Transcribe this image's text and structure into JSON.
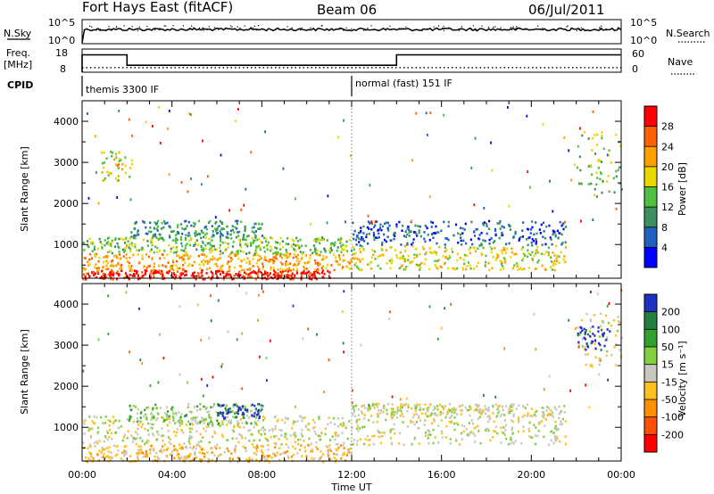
{
  "header": {
    "station": "Fort Hays East (fitACF)",
    "beam": "Beam 06",
    "date": "06/Jul/2011"
  },
  "strips": {
    "nsky_label": "N.Sky",
    "nsky_ticks": [
      "10^5",
      "10^0"
    ],
    "nsearch_label": "N.Search",
    "nsearch_ticks": [
      "10^5",
      "10^0"
    ],
    "freq_label": "Freq.",
    "freq_unit": "[MHz]",
    "freq_ticks": [
      "18",
      "8"
    ],
    "nave_label": "Nave",
    "nave_ticks": [
      "60",
      "0"
    ],
    "cpid_label": "CPID",
    "cpid_segments": [
      {
        "start_ut": 0,
        "text": "themis 3300 IF"
      },
      {
        "start_ut": 12,
        "text": "normal (fast) 151 IF"
      }
    ]
  },
  "chart_data": [
    {
      "type": "heatmap",
      "title": "",
      "panel": "power",
      "xlabel": "",
      "ylabel": "Slant Range [km]",
      "xlim_ut_hours": [
        0,
        24
      ],
      "ylim_km": [
        180,
        4500
      ],
      "x_ticks": [
        "00:00",
        "04:00",
        "08:00",
        "12:00",
        "16:00",
        "20:00",
        "00:00"
      ],
      "y_ticks": [
        1000,
        2000,
        3000,
        4000
      ],
      "colorbar": {
        "label": "Power [dB]",
        "ticks": [
          "4",
          "8",
          "12",
          "16",
          "20",
          "24",
          "28"
        ],
        "colors": [
          "#0000ff",
          "#2060c0",
          "#3c9060",
          "#50c040",
          "#e8d800",
          "#ffa000",
          "#ff6000",
          "#ff0000"
        ]
      },
      "regions": [
        {
          "t": [
            0.0,
            11.0
          ],
          "r": [
            180,
            400
          ],
          "level": 7
        },
        {
          "t": [
            0.0,
            12.0
          ],
          "r": [
            400,
            800
          ],
          "level": 5
        },
        {
          "t": [
            0.0,
            12.0
          ],
          "r": [
            800,
            1200
          ],
          "level": 3
        },
        {
          "t": [
            2.0,
            8.0
          ],
          "r": [
            1200,
            1600
          ],
          "level": 2
        },
        {
          "t": [
            12.0,
            21.5
          ],
          "r": [
            400,
            1000
          ],
          "level": 4
        },
        {
          "t": [
            12.0,
            21.5
          ],
          "r": [
            1000,
            1600
          ],
          "level": 1
        },
        {
          "t": [
            0.8,
            2.2
          ],
          "r": [
            2500,
            3300
          ],
          "level": 4
        },
        {
          "t": [
            22.0,
            24.0
          ],
          "r": [
            2200,
            3800
          ],
          "level": 3
        }
      ]
    },
    {
      "type": "heatmap",
      "title": "",
      "panel": "velocity",
      "xlabel": "Time UT",
      "ylabel": "Slant Range [km]",
      "xlim_ut_hours": [
        0,
        24
      ],
      "ylim_km": [
        180,
        4500
      ],
      "x_ticks": [
        "00:00",
        "04:00",
        "08:00",
        "12:00",
        "16:00",
        "20:00",
        "00:00"
      ],
      "y_ticks": [
        1000,
        2000,
        3000,
        4000
      ],
      "colorbar": {
        "label": "Velocity [m s⁻¹]",
        "ticks": [
          "200",
          "100",
          "50",
          "15",
          "-15",
          "-50",
          "-100",
          "-200"
        ],
        "colors": [
          "#2030c0",
          "#208040",
          "#30a030",
          "#80d040",
          "#c8c8c0",
          "#ffc020",
          "#ff9000",
          "#ff5000",
          "#ff0000"
        ]
      },
      "regions": [
        {
          "t": [
            0.0,
            12.0
          ],
          "r": [
            180,
            600
          ],
          "level": 5
        },
        {
          "t": [
            0.0,
            21.5
          ],
          "r": [
            600,
            1300
          ],
          "level": 4
        },
        {
          "t": [
            2.0,
            8.0
          ],
          "r": [
            1100,
            1600
          ],
          "level": 3
        },
        {
          "t": [
            6.0,
            8.0
          ],
          "r": [
            1250,
            1600
          ],
          "level": 0
        },
        {
          "t": [
            12.0,
            21.5
          ],
          "r": [
            1300,
            1600
          ],
          "level": 4
        },
        {
          "t": [
            22.0,
            24.0
          ],
          "r": [
            2500,
            3800
          ],
          "level": 4
        },
        {
          "t": [
            22.0,
            23.5
          ],
          "r": [
            2900,
            3500
          ],
          "level": 0
        }
      ]
    }
  ]
}
